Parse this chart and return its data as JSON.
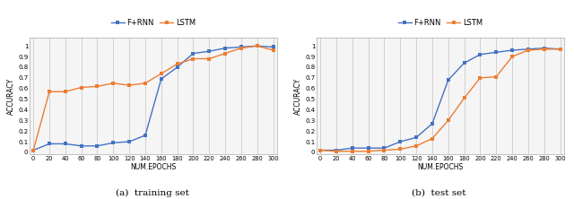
{
  "epochs": [
    0,
    20,
    40,
    60,
    80,
    100,
    120,
    140,
    160,
    180,
    200,
    220,
    240,
    260,
    280,
    300
  ],
  "train_frnn": [
    0.02,
    0.08,
    0.08,
    0.06,
    0.06,
    0.09,
    0.1,
    0.16,
    0.69,
    0.8,
    0.93,
    0.95,
    0.98,
    0.99,
    1.0,
    0.99
  ],
  "train_lstm": [
    0.02,
    0.57,
    0.57,
    0.61,
    0.62,
    0.65,
    0.63,
    0.65,
    0.74,
    0.83,
    0.88,
    0.88,
    0.93,
    0.98,
    1.0,
    0.96
  ],
  "test_frnn": [
    0.02,
    0.02,
    0.04,
    0.04,
    0.04,
    0.1,
    0.14,
    0.27,
    0.68,
    0.84,
    0.92,
    0.94,
    0.96,
    0.97,
    0.98,
    0.97
  ],
  "test_lstm": [
    0.02,
    0.01,
    0.01,
    0.01,
    0.02,
    0.03,
    0.06,
    0.13,
    0.3,
    0.51,
    0.7,
    0.71,
    0.9,
    0.96,
    0.97,
    0.97
  ],
  "frnn_color": "#4472c4",
  "lstm_color": "#ed7d31",
  "frnn_label": "F+RNN",
  "lstm_label": "LSTM",
  "xlabel": "NUM.EPOCHS",
  "ylabel": "ACCURACY",
  "subtitle_a": "(a)  training set",
  "subtitle_b": "(b)  test set",
  "xticks": [
    0,
    20,
    40,
    60,
    80,
    100,
    120,
    140,
    160,
    180,
    200,
    220,
    240,
    260,
    280,
    300
  ],
  "yticks": [
    0,
    0.1,
    0.2,
    0.3,
    0.4,
    0.5,
    0.6,
    0.7,
    0.8,
    0.9,
    1
  ],
  "ytick_labels": [
    "0",
    "0.1",
    "0.2",
    "0.3",
    "0.4",
    "0.5",
    "0.6",
    "0.7",
    "0.8",
    "0.9",
    "1"
  ],
  "ylim": [
    -0.02,
    1.08
  ],
  "xlim": [
    -5,
    305
  ],
  "grid_color": "#d0d0d0",
  "spine_color": "#aaaaaa",
  "bg_color": "#f5f5f5"
}
